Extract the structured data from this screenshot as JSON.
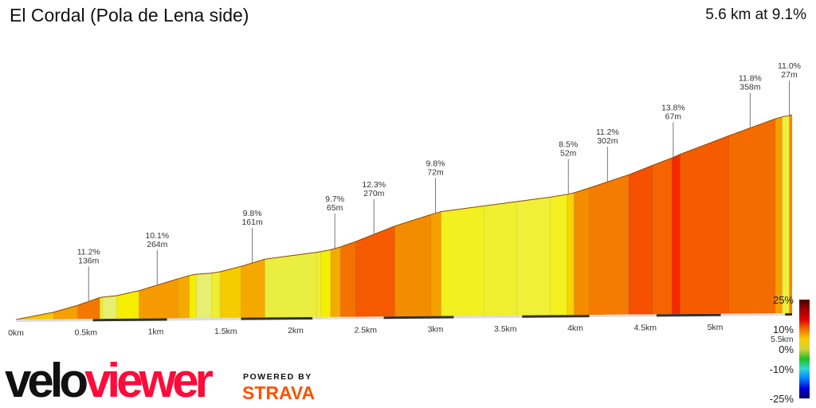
{
  "header": {
    "title": "El Cordal (Pola de Lena side)",
    "summary": "5.6 km at 9.1%"
  },
  "chart_data": {
    "type": "area",
    "title": "El Cordal (Pola de Lena side)",
    "xlabel": "",
    "ylabel": "",
    "x_unit": "km",
    "xlim": [
      0,
      5.55
    ],
    "x_ticks": [
      "0km",
      "0.5km",
      "1km",
      "1.5km",
      "2km",
      "2.5km",
      "3km",
      "3.5km",
      "4km",
      "4.5km",
      "5km",
      "5.5km"
    ],
    "x_tick_values": [
      0,
      0.5,
      1,
      1.5,
      2,
      2.5,
      3,
      3.5,
      4,
      4.5,
      5,
      5.5
    ],
    "segments": [
      {
        "from": 0,
        "to": 0.27,
        "grade": 6,
        "color": "#f5c800"
      },
      {
        "from": 0.27,
        "to": 0.44,
        "grade": 9,
        "color": "#f5a000"
      },
      {
        "from": 0.44,
        "to": 0.6,
        "grade": 11,
        "color": "#f47800"
      },
      {
        "from": 0.6,
        "to": 0.62,
        "grade": 5,
        "color": "#f5ee20"
      },
      {
        "from": 0.62,
        "to": 0.72,
        "grade": 3,
        "color": "#e8ee70"
      },
      {
        "from": 0.72,
        "to": 0.88,
        "grade": 7,
        "color": "#f5ee00"
      },
      {
        "from": 0.88,
        "to": 1.16,
        "grade": 9.5,
        "color": "#f59a00"
      },
      {
        "from": 1.16,
        "to": 1.24,
        "grade": 9,
        "color": "#f5aa00"
      },
      {
        "from": 1.24,
        "to": 1.29,
        "grade": 6,
        "color": "#f5ee00"
      },
      {
        "from": 1.29,
        "to": 1.4,
        "grade": 2,
        "color": "#e8ee70"
      },
      {
        "from": 1.4,
        "to": 1.46,
        "grade": 5,
        "color": "#f0ee30"
      },
      {
        "from": 1.46,
        "to": 1.61,
        "grade": 8,
        "color": "#f5cc00"
      },
      {
        "from": 1.61,
        "to": 1.78,
        "grade": 9.5,
        "color": "#f5a800"
      },
      {
        "from": 1.78,
        "to": 2.15,
        "grade": 4,
        "color": "#eaee40"
      },
      {
        "from": 2.15,
        "to": 2.18,
        "grade": 5,
        "color": "#f0ee30"
      },
      {
        "from": 2.18,
        "to": 2.25,
        "grade": 6,
        "color": "#f5ee00"
      },
      {
        "from": 2.25,
        "to": 2.32,
        "grade": 9,
        "color": "#f5aa00"
      },
      {
        "from": 2.32,
        "to": 2.43,
        "grade": 11,
        "color": "#f47200"
      },
      {
        "from": 2.43,
        "to": 2.71,
        "grade": 12.5,
        "color": "#f55a00"
      },
      {
        "from": 2.71,
        "to": 2.97,
        "grade": 10,
        "color": "#f48c00"
      },
      {
        "from": 2.97,
        "to": 3.04,
        "grade": 9,
        "color": "#f5a000"
      },
      {
        "from": 3.04,
        "to": 3.35,
        "grade": 4,
        "color": "#f2f020"
      },
      {
        "from": 3.35,
        "to": 3.58,
        "grade": 4,
        "color": "#f0f030"
      },
      {
        "from": 3.58,
        "to": 3.82,
        "grade": 4,
        "color": "#f0f038"
      },
      {
        "from": 3.82,
        "to": 3.94,
        "grade": 5,
        "color": "#f5f020"
      },
      {
        "from": 3.94,
        "to": 3.99,
        "grade": 7,
        "color": "#f5d400"
      },
      {
        "from": 3.99,
        "to": 4.1,
        "grade": 10,
        "color": "#f48c00"
      },
      {
        "from": 4.1,
        "to": 4.38,
        "grade": 10.5,
        "color": "#f47c00"
      },
      {
        "from": 4.38,
        "to": 4.55,
        "grade": 12.5,
        "color": "#f55000"
      },
      {
        "from": 4.55,
        "to": 4.69,
        "grade": 12,
        "color": "#f56400"
      },
      {
        "from": 4.69,
        "to": 4.75,
        "grade": 14,
        "color": "#f52a00"
      },
      {
        "from": 4.75,
        "to": 5.1,
        "grade": 12,
        "color": "#f55c00"
      },
      {
        "from": 5.1,
        "to": 5.43,
        "grade": 11.5,
        "color": "#f46c00"
      },
      {
        "from": 5.43,
        "to": 5.48,
        "grade": 9,
        "color": "#f5a000"
      },
      {
        "from": 5.48,
        "to": 5.53,
        "grade": 5,
        "color": "#f0f040"
      },
      {
        "from": 5.53,
        "to": 5.55,
        "grade": 10,
        "color": "#f48c00"
      }
    ],
    "annotations": [
      {
        "km": 0.52,
        "grade": "11.2%",
        "length": "136m"
      },
      {
        "km": 1.01,
        "grade": "10.1%",
        "length": "264m"
      },
      {
        "km": 1.69,
        "grade": "9.8%",
        "length": "161m"
      },
      {
        "km": 2.28,
        "grade": "9.7%",
        "length": "65m"
      },
      {
        "km": 2.56,
        "grade": "12.3%",
        "length": "270m"
      },
      {
        "km": 3.0,
        "grade": "9.8%",
        "length": "72m"
      },
      {
        "km": 3.95,
        "grade": "8.5%",
        "length": "52m"
      },
      {
        "km": 4.23,
        "grade": "11.2%",
        "length": "302m"
      },
      {
        "km": 4.7,
        "grade": "13.8%",
        "length": "67m"
      },
      {
        "km": 5.25,
        "grade": "11.8%",
        "length": "358m"
      },
      {
        "km": 5.53,
        "grade": "11.0%",
        "length": "27m"
      }
    ],
    "legend": {
      "labels": [
        "25%",
        "10%",
        "0%",
        "-10%",
        "-25%"
      ],
      "values": [
        25,
        10,
        0,
        -10,
        -25
      ],
      "colors": [
        "#4a0000",
        "#a00000",
        "#e00000",
        "#f07000",
        "#f5d000",
        "#d8d040",
        "#20c020",
        "#30d8d8",
        "#0080ff",
        "#0000e0",
        "#000060"
      ],
      "placement": "bottom-right"
    }
  },
  "branding": {
    "logo_velo": "velo",
    "logo_viewer": "viewer",
    "powered": "POWERED BY",
    "strava": "STRAVA"
  }
}
